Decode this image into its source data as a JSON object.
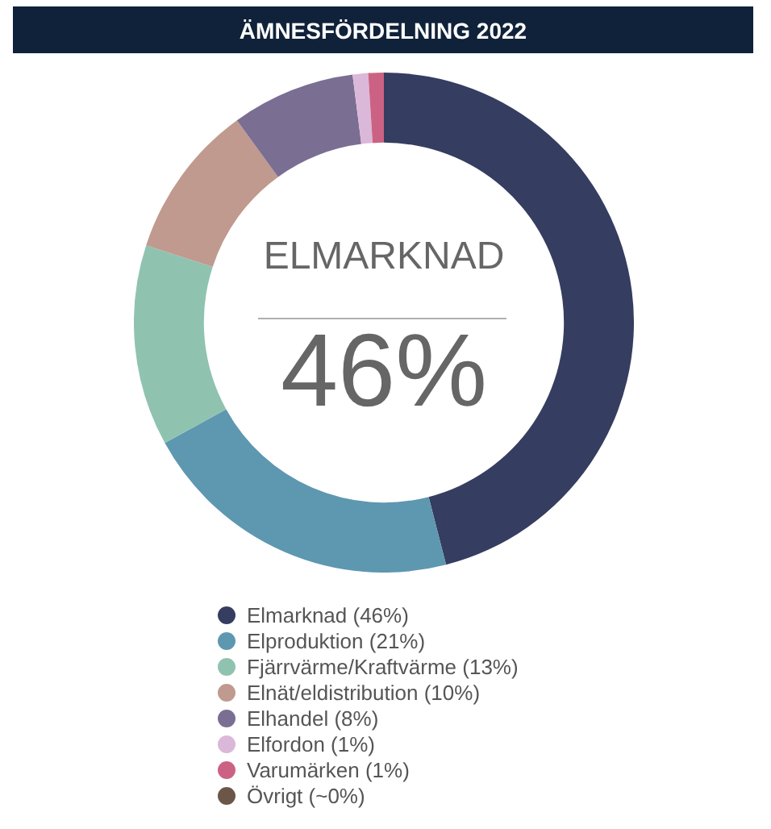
{
  "chart_data": {
    "type": "donut",
    "title": "ÄMNESFÖRDELNING 2022",
    "categories": [
      "Elmarknad (46%)",
      "Elproduktion (21%)",
      "Fjärrvärme/Kraftvärme (13%)",
      "Elnät/eldistribution (10%)",
      "Elhandel (8%)",
      "Elfordon (1%)",
      "Varumärken (1%)",
      "Övrigt (~0%)"
    ],
    "values": [
      46,
      21,
      13,
      10,
      8,
      1,
      1,
      0
    ],
    "colors": [
      "#353d60",
      "#5e97b0",
      "#8fc3b0",
      "#c09a8e",
      "#7a6e92",
      "#dbb8d9",
      "#cc6283",
      "#6b5648"
    ],
    "annotations": [
      "ELMARKNAD",
      "46%"
    ],
    "legend": "bottom"
  }
}
